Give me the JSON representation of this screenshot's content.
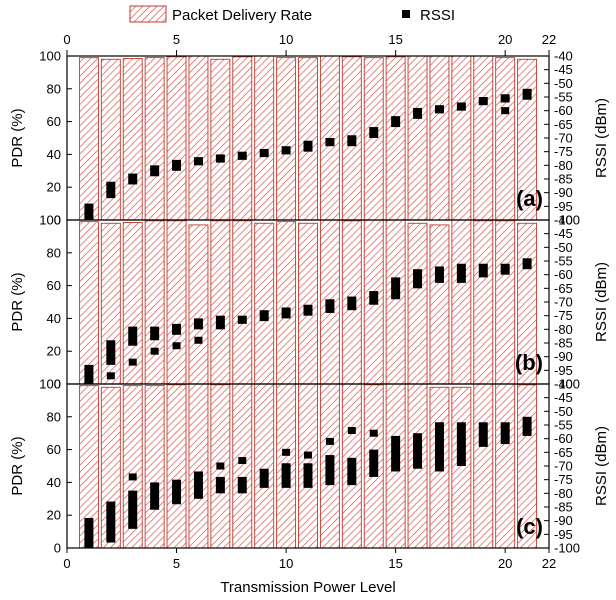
{
  "chart_data": {
    "type": "bar",
    "xlabel": "Transmission Power Level",
    "xlim": [
      0,
      22
    ],
    "x_ticks": [
      0,
      5,
      10,
      15,
      20,
      22
    ],
    "legend": {
      "position": "top",
      "bar_label": "Packet Delivery Rate",
      "marker_label": "RSSI"
    },
    "left_axis": {
      "label": "PDR (%)",
      "ylim": [
        0,
        100
      ],
      "ticks": [
        0,
        20,
        40,
        60,
        80,
        100
      ]
    },
    "right_axis": {
      "label": "RSSI (dBm)",
      "ylim": [
        -100,
        -40
      ],
      "ticks": [
        -100,
        -95,
        -90,
        -85,
        -80,
        -75,
        -70,
        -65,
        -60,
        -55,
        -50,
        -45,
        -40
      ]
    },
    "colors": {
      "bar_stroke": "#c0392b",
      "hatch": "#d9534f",
      "marker": "#000000"
    },
    "panels": [
      {
        "label": "(a)",
        "power_levels": [
          1,
          2,
          3,
          4,
          5,
          6,
          7,
          8,
          9,
          10,
          11,
          12,
          13,
          14,
          15,
          16,
          17,
          18,
          19,
          20,
          21
        ],
        "pdr": [
          99,
          98,
          98.5,
          99,
          99.5,
          100,
          98,
          99.5,
          100,
          99,
          99,
          100,
          99.5,
          99,
          99.5,
          100,
          100,
          100,
          100,
          99,
          98
        ],
        "rssi": [
          {
            "min": -100,
            "max": -94
          },
          {
            "min": -92,
            "max": -86,
            "extra": []
          },
          {
            "min": -87,
            "max": -83,
            "extra": []
          },
          {
            "min": -84,
            "max": -80,
            "extra": []
          },
          {
            "min": -82,
            "max": -78,
            "extra": []
          },
          {
            "min": -80,
            "max": -77,
            "extra": []
          },
          {
            "min": -79,
            "max": -76,
            "extra": []
          },
          {
            "min": -78,
            "max": -75,
            "extra": []
          },
          {
            "min": -77,
            "max": -74,
            "extra": []
          },
          {
            "min": -76,
            "max": -73,
            "extra": []
          },
          {
            "min": -75,
            "max": -71,
            "extra": []
          },
          {
            "min": -73,
            "max": -70,
            "extra": []
          },
          {
            "min": -73,
            "max": -69,
            "extra": []
          },
          {
            "min": -70,
            "max": -66,
            "extra": []
          },
          {
            "min": -66,
            "max": -62,
            "extra": []
          },
          {
            "min": -63,
            "max": -59,
            "extra": []
          },
          {
            "min": -61,
            "max": -58,
            "extra": []
          },
          {
            "min": -60,
            "max": -57,
            "extra": []
          },
          {
            "min": -58,
            "max": -55,
            "extra": []
          },
          {
            "min": -57,
            "max": -54,
            "extra": [
              -60
            ]
          },
          {
            "min": -56,
            "max": -52,
            "extra": []
          }
        ]
      },
      {
        "label": "(b)",
        "power_levels": [
          1,
          2,
          3,
          4,
          5,
          6,
          7,
          8,
          9,
          10,
          11,
          12,
          13,
          14,
          15,
          16,
          17,
          18,
          19,
          20,
          21
        ],
        "pdr": [
          99,
          98,
          98.5,
          99.5,
          99.5,
          97,
          99.5,
          99.5,
          98,
          99,
          98,
          100,
          99.5,
          100,
          100,
          98,
          97,
          100,
          99.5,
          99.5,
          98
        ],
        "rssi": [
          {
            "min": -100,
            "max": -93,
            "extra": []
          },
          {
            "min": -93,
            "max": -84,
            "extra": [
              -97
            ]
          },
          {
            "min": -86,
            "max": -79,
            "extra": [
              -92
            ]
          },
          {
            "min": -84,
            "max": -79,
            "extra": [
              -88
            ]
          },
          {
            "min": -82,
            "max": -78,
            "extra": [
              -86
            ]
          },
          {
            "min": -80,
            "max": -76,
            "extra": [
              -84
            ]
          },
          {
            "min": -80,
            "max": -75,
            "extra": []
          },
          {
            "min": -78,
            "max": -75,
            "extra": []
          },
          {
            "min": -77,
            "max": -73,
            "extra": []
          },
          {
            "min": -76,
            "max": -72,
            "extra": []
          },
          {
            "min": -75,
            "max": -71,
            "extra": []
          },
          {
            "min": -74,
            "max": -69,
            "extra": []
          },
          {
            "min": -73,
            "max": -68,
            "extra": []
          },
          {
            "min": -71,
            "max": -66,
            "extra": []
          },
          {
            "min": -69,
            "max": -61,
            "extra": []
          },
          {
            "min": -65,
            "max": -58,
            "extra": []
          },
          {
            "min": -63,
            "max": -57,
            "extra": []
          },
          {
            "min": -63,
            "max": -56,
            "extra": []
          },
          {
            "min": -61,
            "max": -56,
            "extra": []
          },
          {
            "min": -60,
            "max": -56,
            "extra": []
          },
          {
            "min": -58,
            "max": -54,
            "extra": []
          }
        ]
      },
      {
        "label": "(c)",
        "power_levels": [
          1,
          2,
          3,
          4,
          5,
          6,
          7,
          8,
          9,
          10,
          11,
          12,
          13,
          14,
          15,
          16,
          17,
          18,
          19,
          20,
          21
        ],
        "pdr": [
          99,
          98,
          99,
          99,
          99.5,
          100,
          99.5,
          100,
          100,
          100,
          100,
          100,
          100,
          99.5,
          100,
          100,
          98,
          98,
          100,
          100,
          99.5
        ],
        "rssi": [
          {
            "min": -100,
            "max": -89,
            "extra": []
          },
          {
            "min": -98,
            "max": -83,
            "extra": []
          },
          {
            "min": -93,
            "max": -79,
            "extra": [
              -74
            ]
          },
          {
            "min": -86,
            "max": -76,
            "extra": []
          },
          {
            "min": -84,
            "max": -75,
            "extra": []
          },
          {
            "min": -82,
            "max": -72,
            "extra": []
          },
          {
            "min": -80,
            "max": -74,
            "extra": [
              -70
            ]
          },
          {
            "min": -80,
            "max": -74,
            "extra": [
              -68
            ]
          },
          {
            "min": -78,
            "max": -71,
            "extra": []
          },
          {
            "min": -78,
            "max": -69,
            "extra": [
              -65
            ]
          },
          {
            "min": -78,
            "max": -69,
            "extra": [
              -66
            ]
          },
          {
            "min": -77,
            "max": -66,
            "extra": [
              -61
            ]
          },
          {
            "min": -77,
            "max": -67,
            "extra": [
              -57
            ]
          },
          {
            "min": -74,
            "max": -64,
            "extra": [
              -58
            ]
          },
          {
            "min": -72,
            "max": -59,
            "extra": []
          },
          {
            "min": -71,
            "max": -58,
            "extra": []
          },
          {
            "min": -72,
            "max": -54,
            "extra": []
          },
          {
            "min": -70,
            "max": -54,
            "extra": []
          },
          {
            "min": -63,
            "max": -54,
            "extra": []
          },
          {
            "min": -62,
            "max": -54,
            "extra": []
          },
          {
            "min": -59,
            "max": -52,
            "extra": []
          }
        ]
      }
    ]
  }
}
